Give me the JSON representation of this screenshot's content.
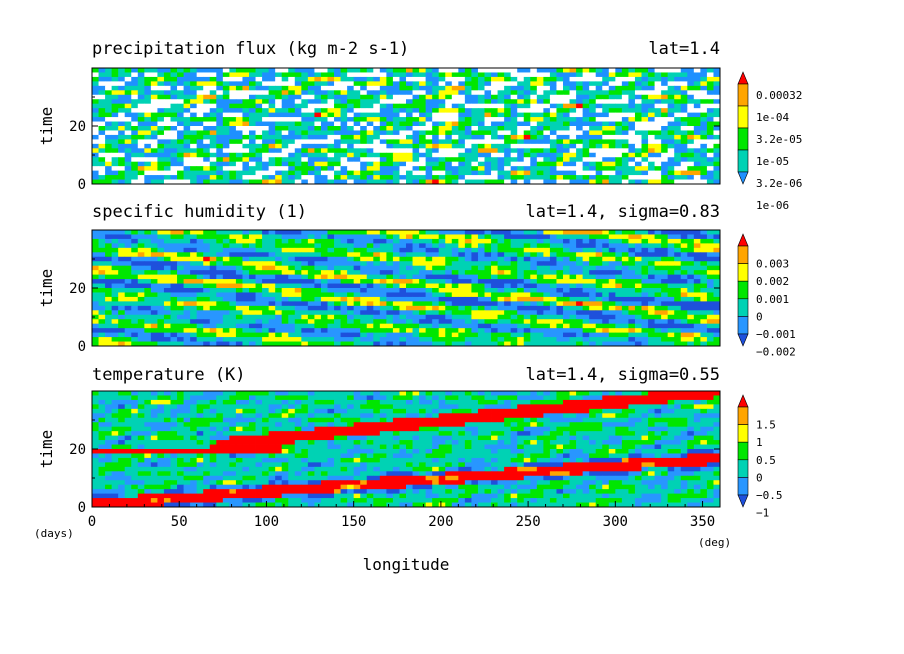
{
  "chart_data": [
    {
      "type": "heatmap",
      "title": "precipitation flux (kg m-2 s-1)",
      "annotation": "lat=1.4",
      "ylabel": "time",
      "xlim": [
        0,
        360
      ],
      "ylim": [
        0,
        40
      ],
      "yticks": [
        0,
        20
      ],
      "colorbar_labels": [
        "0.00032",
        "1e-04",
        "3.2e-05",
        "1e-05",
        "3.2e-06",
        "1e-06"
      ],
      "colorbar_colors": [
        "#1e90ff",
        "#00d2b4",
        "#00e600",
        "#ffff00",
        "#ffa500",
        "#ff0000"
      ],
      "pattern": "noise"
    },
    {
      "type": "heatmap",
      "title": "specific humidity (1)",
      "annotation": "lat=1.4, sigma=0.83",
      "ylabel": "time",
      "xlim": [
        0,
        360
      ],
      "ylim": [
        0,
        40
      ],
      "yticks": [
        0,
        20
      ],
      "colorbar_labels": [
        "0.003",
        "0.002",
        "0.001",
        "0",
        "−0.001",
        "−0.002"
      ],
      "colorbar_colors": [
        "#1e50dc",
        "#2896ff",
        "#00d2b4",
        "#00e600",
        "#ffff00",
        "#ffa500",
        "#ff0000"
      ],
      "pattern": "westward"
    },
    {
      "type": "heatmap",
      "title": "temperature (K)",
      "annotation": "lat=1.4, sigma=0.55",
      "ylabel": "time",
      "xlabel": "longitude",
      "xlim": [
        0,
        360
      ],
      "ylim": [
        0,
        40
      ],
      "yticks": [
        0,
        20
      ],
      "xticks": [
        0,
        50,
        100,
        150,
        200,
        250,
        300,
        350
      ],
      "x_unit": "(deg)",
      "y_unit": "(days)",
      "colorbar_labels": [
        "1.5",
        "1",
        "0.5",
        "0",
        "−0.5",
        "−1"
      ],
      "colorbar_colors": [
        "#1e50dc",
        "#2896ff",
        "#00d2b4",
        "#00e600",
        "#ffff00",
        "#ffa500",
        "#ff0000"
      ],
      "pattern": "eastward"
    }
  ]
}
